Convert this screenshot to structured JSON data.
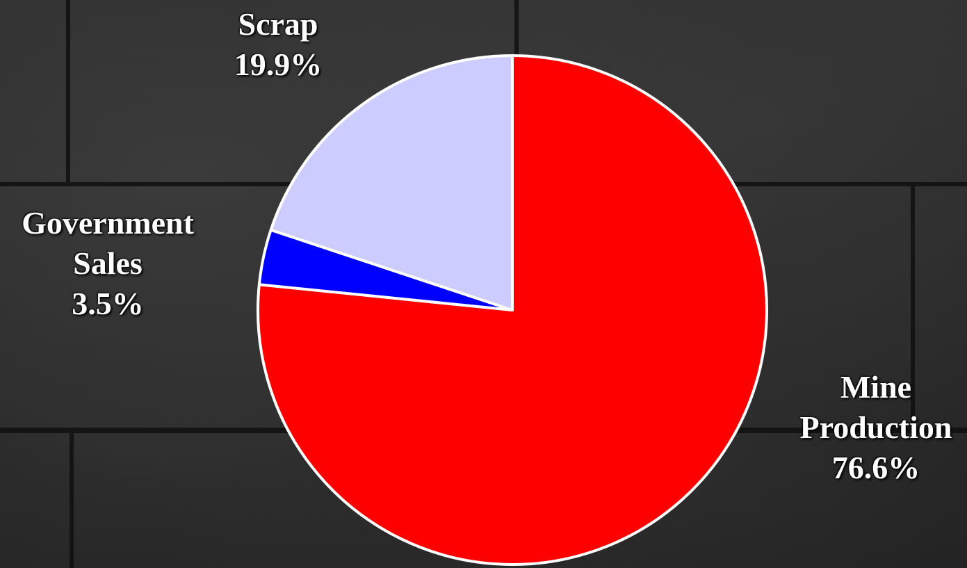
{
  "chart_data": {
    "type": "pie",
    "slices": [
      {
        "label_lines": [
          "Mine",
          "Production"
        ],
        "value_text": "76.6%",
        "value": 76.6,
        "color": "#ff0000"
      },
      {
        "label_lines": [
          "Government",
          "Sales"
        ],
        "value_text": "3.5%",
        "value": 3.5,
        "color": "#0000ff"
      },
      {
        "label_lines": [
          "Scrap"
        ],
        "value_text": "19.9%",
        "value": 19.9,
        "color": "#ccccff"
      }
    ],
    "slice_border_color": "#ffffff"
  }
}
